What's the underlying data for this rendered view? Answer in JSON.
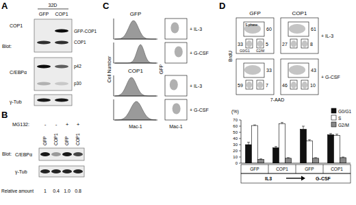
{
  "panels": {
    "A": {
      "label": "A",
      "group": "32D",
      "lanes": [
        "GFP",
        "COP1"
      ],
      "blot_label": "Blot:",
      "blots": [
        {
          "target": "COP1",
          "bands": [
            "GFP-COP1",
            "COP1"
          ]
        },
        {
          "target": "C/EBPα",
          "bands": [
            "p42",
            "p30"
          ]
        },
        {
          "target": "γ-Tub",
          "bands": []
        }
      ]
    },
    "B": {
      "label": "B",
      "treatment": "MG132:",
      "signs": [
        "-",
        "-",
        "+",
        "+"
      ],
      "lanes": [
        "GFP",
        "COP1",
        "GFP",
        "COP1"
      ],
      "blot_label": "Blot:",
      "blots": [
        "C/EBPα",
        "γ-Tub"
      ],
      "quant_label": "Relative amount",
      "quant": [
        "1",
        "0.4",
        "1.0",
        "0.8"
      ]
    },
    "C": {
      "label": "C",
      "hist_ylabel": "Cell Number",
      "hist_xlabel": "Mac-1",
      "dot_ylabel": "GFP",
      "dot_xlabel": "Mac-1",
      "rows": [
        {
          "sample": "GFP",
          "condition": "+ IL-3"
        },
        {
          "sample": null,
          "condition": "+ G-CSF"
        },
        {
          "sample": "COP1",
          "condition": "+ IL-3"
        },
        {
          "sample": null,
          "condition": "+ G-CSF"
        }
      ]
    },
    "D": {
      "label": "D",
      "samples": [
        "GFP",
        "COP1"
      ],
      "conditions": [
        "+ IL-3",
        "+ G-CSF"
      ],
      "ylabel": "BrdU",
      "xlabel": "7-AAD",
      "gate_labels": {
        "s": "S phase",
        "g1": "G0/G1",
        "g2m": "G2/M"
      },
      "plots": [
        [
          {
            "s": 60,
            "g1": 33,
            "g2m": 5
          },
          {
            "s": 61,
            "g1": 27,
            "g2m": 8
          }
        ],
        [
          {
            "s": 33,
            "g1": 59,
            "g2m": 7
          },
          {
            "s": 43,
            "g1": 46,
            "g2m": 10
          }
        ]
      ]
    }
  },
  "chart_data": {
    "type": "bar",
    "ylabel": "(%)",
    "categories": [
      "GFP",
      "COP1",
      "GFP",
      "COP1"
    ],
    "groups": [
      "IL3",
      "G-CSF"
    ],
    "series": [
      {
        "name": "G0/G1",
        "color": "#111111",
        "values": [
          30,
          25,
          55,
          46
        ],
        "errors": [
          4,
          2,
          5,
          2
        ]
      },
      {
        "name": "S",
        "color": "#ffffff",
        "values": [
          61,
          64,
          36,
          45
        ],
        "errors": [
          1,
          2,
          2,
          2
        ]
      },
      {
        "name": "G2/M",
        "color": "#888888",
        "values": [
          6,
          8,
          8,
          9
        ],
        "errors": [
          1,
          1,
          1,
          1
        ]
      }
    ],
    "ylim": [
      0,
      70
    ],
    "yticks": [
      0,
      10,
      20,
      30,
      40,
      50,
      60,
      70
    ],
    "grid": false,
    "legend": "top-right"
  }
}
